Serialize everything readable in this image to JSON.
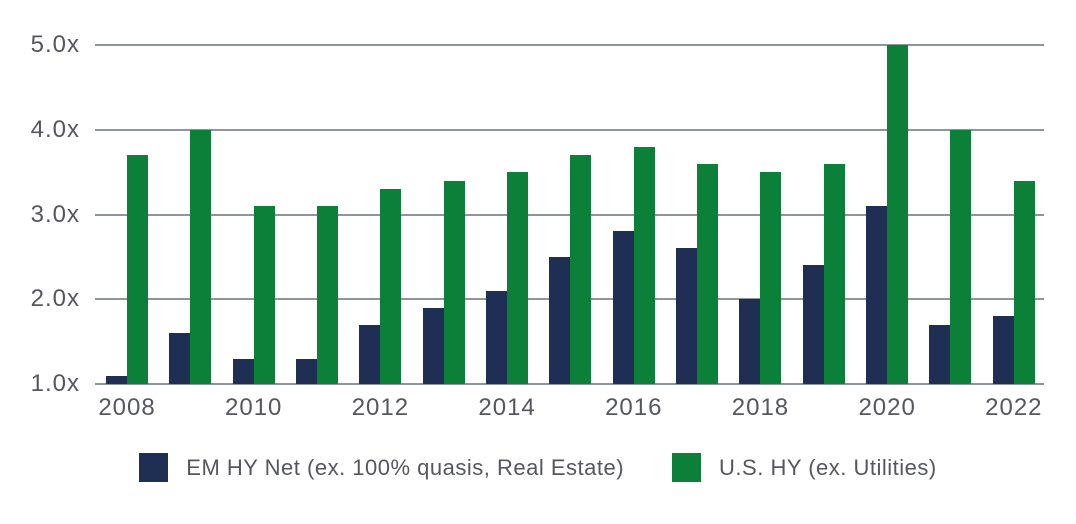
{
  "chart_data": {
    "type": "bar",
    "title": "",
    "xlabel": "",
    "ylabel": "",
    "categories": [
      "2008",
      "2009",
      "2010",
      "2011",
      "2012",
      "2013",
      "2014",
      "2015",
      "2016",
      "2017",
      "2018",
      "2019",
      "2020",
      "2021",
      "2022"
    ],
    "series": [
      {
        "name": "EM HY Net (ex. 100% quasis, Real Estate)",
        "slug": "em-hy-net",
        "color": "#1f2f53",
        "values": [
          1.1,
          1.6,
          1.3,
          1.3,
          1.7,
          1.9,
          2.1,
          2.5,
          2.8,
          2.6,
          2.0,
          2.4,
          3.1,
          1.7,
          1.8
        ]
      },
      {
        "name": "U.S. HY (ex. Utilities)",
        "slug": "us-hy",
        "color": "#0c8038",
        "values": [
          3.7,
          4.0,
          3.1,
          3.1,
          3.3,
          3.4,
          3.5,
          3.7,
          3.8,
          3.6,
          3.5,
          3.6,
          5.0,
          4.0,
          3.4
        ]
      }
    ],
    "ylim": [
      1.0,
      5.0
    ],
    "ytick_labels": [
      "5.0x",
      "4.0x",
      "3.0x",
      "2.0x",
      "1.0x"
    ],
    "xtick_labels": [
      "2008",
      "2010",
      "2012",
      "2014",
      "2016",
      "2018",
      "2020",
      "2022"
    ],
    "value_suffix": "x",
    "grid": true,
    "gridline_color": "#8f959b",
    "tick_text_color": "#55575c",
    "legend_position": "bottom"
  }
}
